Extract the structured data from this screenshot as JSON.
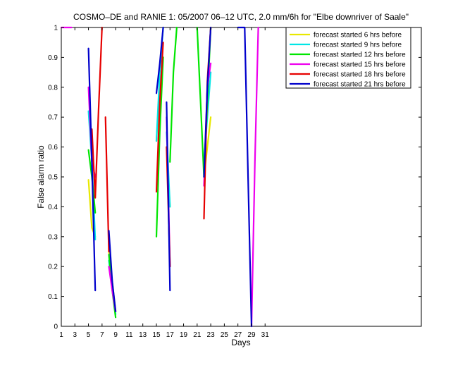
{
  "chart_data": {
    "type": "line",
    "title": "COSMO–DE and RANIE 1: 05/2007 06–12 UTC, 2.0 mm/6h for \"Elbe downriver of Saale\"",
    "xlabel": "Days",
    "ylabel": "False alarm ratio",
    "xlim": [
      1,
      54
    ],
    "ylim": [
      0,
      1
    ],
    "x_ticks": [
      "1",
      "3",
      "5",
      "7",
      "9",
      "11",
      "13",
      "15",
      "17",
      "19",
      "21",
      "23",
      "25",
      "27",
      "29",
      "31"
    ],
    "y_ticks": [
      "0",
      "0.1",
      "0.2",
      "0.3",
      "0.4",
      "0.5",
      "0.6",
      "0.7",
      "0.8",
      "0.9",
      "1"
    ],
    "grid": false,
    "legend_position": "top-right",
    "series": [
      {
        "name": "forecast started 6 hrs before",
        "color": "#e8e800",
        "segments": [
          [
            [
              5,
              0.49
            ],
            [
              5.5,
              0.33
            ],
            [
              6,
              0.3
            ]
          ],
          [
            [
              8,
              0.25
            ],
            [
              8.5,
              0.15
            ],
            [
              9,
              0.05
            ]
          ],
          [
            [
              15,
              0.62
            ],
            [
              15.5,
              0.8
            ],
            [
              16,
              0.9
            ]
          ],
          [
            [
              16.5,
              0.6
            ],
            [
              17,
              0.4
            ]
          ],
          [
            [
              22,
              0.5
            ],
            [
              23,
              0.7
            ]
          ]
        ]
      },
      {
        "name": "forecast started 9 hrs before",
        "color": "#00e6e6",
        "segments": [
          [
            [
              5,
              0.72
            ],
            [
              5.5,
              0.55
            ],
            [
              6,
              0.29
            ]
          ],
          [
            [
              8,
              0.22
            ],
            [
              8.5,
              0.13
            ],
            [
              9,
              0.04
            ]
          ],
          [
            [
              15,
              0.62
            ],
            [
              15.5,
              0.85
            ],
            [
              16,
              1
            ]
          ],
          [
            [
              16.5,
              0.65
            ],
            [
              17,
              0.4
            ]
          ],
          [
            [
              22,
              0.55
            ],
            [
              23,
              0.85
            ]
          ]
        ]
      },
      {
        "name": "forecast started 12 hrs before",
        "color": "#00e600",
        "segments": [
          [
            [
              5,
              0.59
            ],
            [
              5.5,
              0.5
            ],
            [
              6,
              0.38
            ]
          ],
          [
            [
              8,
              0.24
            ],
            [
              8.5,
              0.12
            ],
            [
              9,
              0.03
            ]
          ],
          [
            [
              15,
              0.3
            ],
            [
              15.5,
              0.65
            ],
            [
              16,
              0.9
            ]
          ],
          [
            [
              17,
              0.55
            ],
            [
              17.5,
              0.85
            ],
            [
              18,
              1
            ]
          ],
          [
            [
              21,
              1
            ],
            [
              21.5,
              0.75
            ],
            [
              22,
              0.5
            ],
            [
              22.5,
              0.75
            ],
            [
              23,
              1
            ]
          ]
        ]
      },
      {
        "name": "forecast started 15 hrs before",
        "color": "#ee00ee",
        "segments": [
          [
            [
              1,
              1
            ],
            [
              2.5,
              1
            ]
          ],
          [
            [
              5,
              0.8
            ],
            [
              5.5,
              0.55
            ],
            [
              6,
              0.5
            ]
          ],
          [
            [
              8,
              0.2
            ],
            [
              8.5,
              0.12
            ],
            [
              9,
              0.05
            ]
          ],
          [
            [
              16.5,
              0.7
            ],
            [
              17,
              0.2
            ]
          ],
          [
            [
              22,
              0.47
            ],
            [
              22.5,
              0.8
            ],
            [
              23,
              0.88
            ]
          ],
          [
            [
              29,
              0
            ],
            [
              29.5,
              0.55
            ],
            [
              30,
              1
            ]
          ]
        ]
      },
      {
        "name": "forecast started 18 hrs before",
        "color": "#e60000",
        "segments": [
          [
            [
              5.5,
              0.66
            ],
            [
              6,
              0.43
            ],
            [
              6.5,
              0.73
            ],
            [
              7,
              1
            ]
          ],
          [
            [
              7.5,
              0.7
            ],
            [
              8,
              0.25
            ]
          ],
          [
            [
              15,
              0.45
            ],
            [
              15.5,
              0.75
            ],
            [
              16,
              0.95
            ]
          ],
          [
            [
              16.5,
              0.6
            ],
            [
              17,
              0.2
            ]
          ],
          [
            [
              22,
              0.36
            ],
            [
              22.5,
              0.82
            ],
            [
              23,
              1
            ]
          ]
        ]
      },
      {
        "name": "forecast started 21 hrs before",
        "color": "#0000cc",
        "segments": [
          [
            [
              5,
              0.93
            ],
            [
              5.5,
              0.55
            ],
            [
              6,
              0.12
            ]
          ],
          [
            [
              8,
              0.32
            ],
            [
              8.5,
              0.15
            ],
            [
              9,
              0.05
            ]
          ],
          [
            [
              15,
              0.78
            ],
            [
              15.5,
              0.88
            ],
            [
              16,
              1
            ]
          ],
          [
            [
              16.5,
              0.75
            ],
            [
              17,
              0.12
            ]
          ],
          [
            [
              22,
              0.5
            ],
            [
              22.5,
              0.8
            ],
            [
              23,
              1
            ]
          ],
          [
            [
              27,
              1
            ],
            [
              28,
              1
            ],
            [
              28.5,
              0.5
            ],
            [
              29,
              0
            ]
          ]
        ]
      }
    ]
  }
}
